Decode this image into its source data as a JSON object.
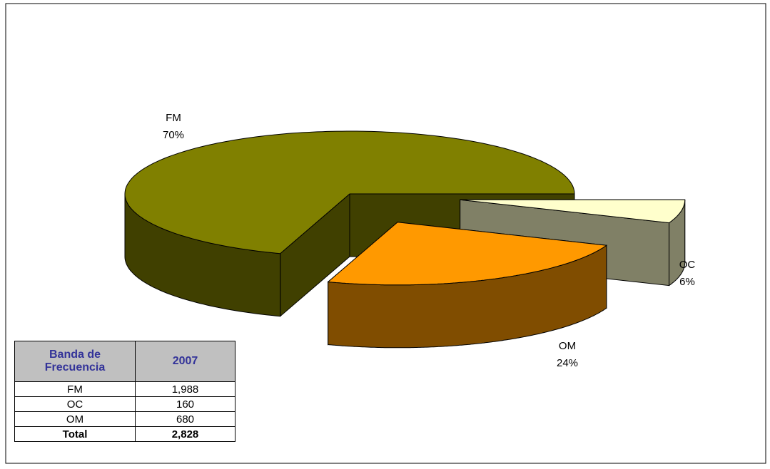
{
  "chart_data": {
    "type": "pie",
    "categories": [
      "FM",
      "OC",
      "OM"
    ],
    "values": [
      70,
      6,
      24
    ],
    "value_labels": [
      "70%",
      "6%",
      "24%"
    ],
    "colors": [
      "#808000",
      "#ffffcc",
      "#ff9900"
    ]
  },
  "table": {
    "header": [
      "Banda de Frecuencia",
      "2007"
    ],
    "rows": [
      [
        "FM",
        "1,988"
      ],
      [
        "OC",
        "160"
      ],
      [
        "OM",
        "680"
      ]
    ],
    "total": [
      "Total",
      "2,828"
    ]
  }
}
